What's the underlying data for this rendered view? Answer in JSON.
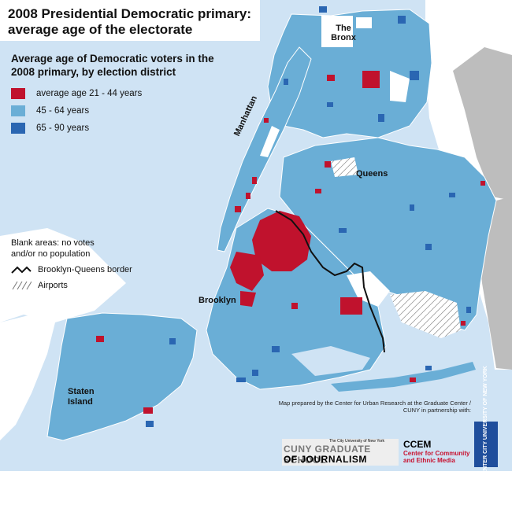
{
  "title": "2008 Presidential Democratic primary: average age of the electorate",
  "subtitle": "Average age of Democratic voters in the 2008 primary, by election district",
  "legend": [
    {
      "label": "average age 21 - 44 years",
      "color": "#c0122d"
    },
    {
      "label": "45 - 64 years",
      "color": "#6aaed6"
    },
    {
      "label": "65 - 90 years",
      "color": "#2a66b2"
    }
  ],
  "notes": {
    "blank_areas": "Blank areas: no votes and/or no population",
    "border": "Brooklyn-Queens border",
    "airports": "Airports"
  },
  "place_labels": {
    "bronx": "The Bronx",
    "queens": "Queens",
    "manhattan": "Manhattan",
    "brooklyn": "Brooklyn",
    "staten_island": "Staten Island"
  },
  "credit": "Map prepared by the Center for Urban Research at the Graduate Center / CUNY in partnership with:",
  "logos": {
    "cuny_small": "The City University of New York",
    "cuny_line1": "CUNY GRADUATE SCHOOL",
    "cuny_line2": "OF JOURNALISM",
    "ccem_line1": "CCEM",
    "ccem_line2": "Center for Community and Ethnic Media",
    "gc_text": "THE GRADUATE CENTER CITY UNIVERSITY OF NEW YORK"
  },
  "colors": {
    "water": "#cfe3f4",
    "land_context": "#bdbdbd",
    "land_base": "#6aaed6",
    "young": "#c0122d",
    "old": "#2a66b2",
    "blank": "#ffffff"
  }
}
